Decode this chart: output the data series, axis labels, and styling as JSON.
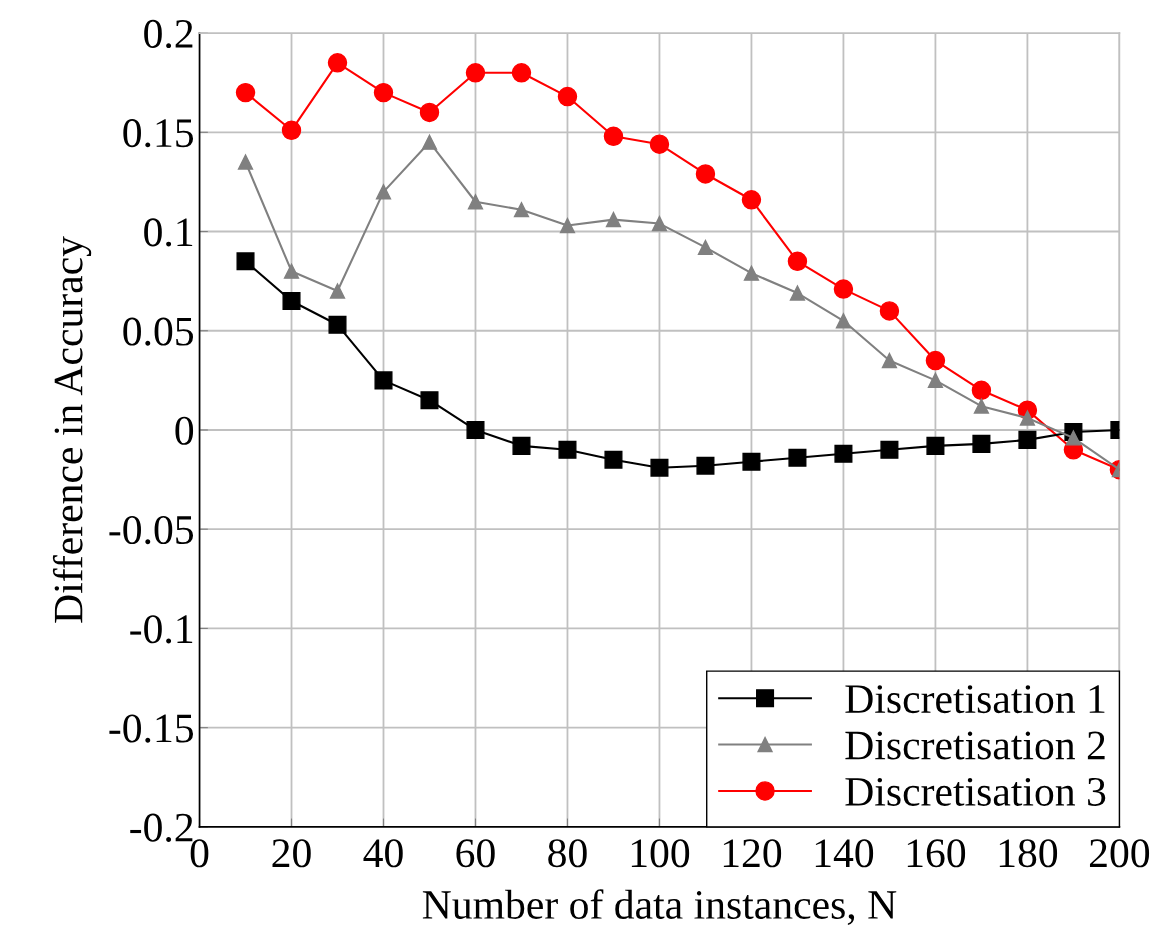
{
  "chart_data": {
    "type": "line",
    "xlabel": "Number of data instances, N",
    "ylabel": "Difference in Accuracy",
    "x": [
      10,
      20,
      30,
      40,
      50,
      60,
      70,
      80,
      90,
      100,
      110,
      120,
      130,
      140,
      150,
      160,
      170,
      180,
      190,
      200
    ],
    "series": [
      {
        "name": "Discretisation 1",
        "color": "#000000",
        "marker": "square",
        "values": [
          0.085,
          0.065,
          0.053,
          0.025,
          0.015,
          0,
          -0.008,
          -0.01,
          -0.015,
          -0.019,
          -0.018,
          -0.016,
          -0.014,
          -0.012,
          -0.01,
          -0.008,
          -0.007,
          -0.005,
          -0.001,
          0
        ]
      },
      {
        "name": "Discretisation 2",
        "color": "#808080",
        "marker": "triangle",
        "values": [
          0.135,
          0.08,
          0.07,
          0.12,
          0.145,
          0.115,
          0.111,
          0.103,
          0.106,
          0.104,
          0.092,
          0.079,
          0.069,
          0.055,
          0.035,
          0.025,
          0.012,
          0.006,
          -0.004,
          -0.02
        ]
      },
      {
        "name": "Discretisation 3",
        "color": "#ff0000",
        "marker": "circle",
        "values": [
          0.17,
          0.151,
          0.185,
          0.17,
          0.16,
          0.18,
          0.18,
          0.168,
          0.148,
          0.144,
          0.129,
          0.116,
          0.085,
          0.071,
          0.06,
          0.035,
          0.02,
          0.01,
          -0.01,
          -0.02
        ]
      }
    ],
    "xlim": [
      0,
      200
    ],
    "xticks": [
      0,
      20,
      40,
      60,
      80,
      100,
      120,
      140,
      160,
      180,
      200
    ],
    "ylim": [
      -0.2,
      0.2
    ],
    "yticks": [
      -0.2,
      -0.15,
      -0.1,
      -0.05,
      0,
      0.05,
      0.1,
      0.15,
      0.2
    ],
    "grid": true,
    "legend": "bottom right",
    "line_style": "solid"
  }
}
